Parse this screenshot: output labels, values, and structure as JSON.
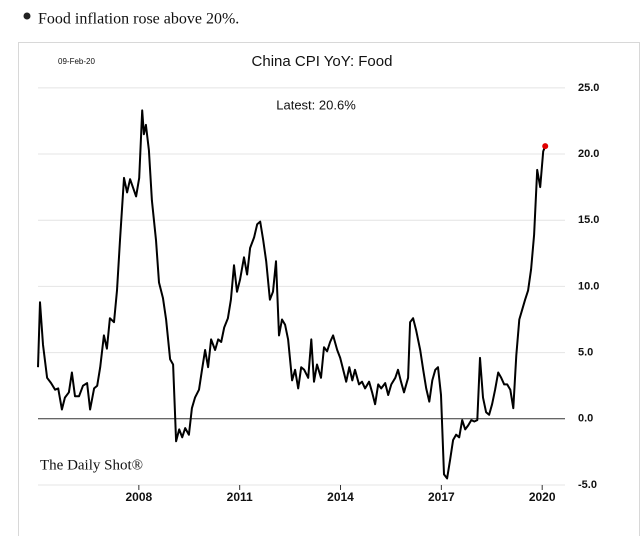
{
  "bullet": {
    "text": "Food inflation rose above 20%."
  },
  "chart_data": {
    "type": "line",
    "title": "China CPI YoY: Food",
    "date": "09-Feb-20",
    "annotation": "Latest:  20.6%",
    "source": "The Daily Shot®",
    "color": "#000000",
    "latest_color": "#e00000",
    "grid": true,
    "xlim": [
      2005,
      2020.5
    ],
    "xticks": [
      2008,
      2011,
      2014,
      2017,
      2020
    ],
    "ylim": [
      -5,
      26.5
    ],
    "yticks": [
      {
        "value": -5,
        "label": "-5.0"
      },
      {
        "value": 0,
        "label": "0.0"
      },
      {
        "value": 5,
        "label": "5.0"
      },
      {
        "value": 10,
        "label": "10.0"
      },
      {
        "value": 15,
        "label": "15.0"
      },
      {
        "value": 20,
        "label": "20.0"
      },
      {
        "value": 25,
        "label": "25.0"
      }
    ],
    "x": [
      2005.0,
      2005.06,
      2005.15,
      2005.27,
      2005.39,
      2005.51,
      2005.6,
      2005.71,
      2005.8,
      2005.92,
      2006.01,
      2006.1,
      2006.22,
      2006.34,
      2006.46,
      2006.55,
      2006.67,
      2006.76,
      2006.85,
      2006.96,
      2007.05,
      2007.14,
      2007.26,
      2007.35,
      2007.44,
      2007.56,
      2007.65,
      2007.74,
      2007.92,
      2008.01,
      2008.1,
      2008.15,
      2008.21,
      2008.3,
      2008.39,
      2008.51,
      2008.6,
      2008.72,
      2008.81,
      2008.93,
      2009.02,
      2009.11,
      2009.2,
      2009.29,
      2009.38,
      2009.49,
      2009.58,
      2009.67,
      2009.79,
      2009.88,
      2009.97,
      2010.06,
      2010.15,
      2010.27,
      2010.36,
      2010.45,
      2010.54,
      2010.65,
      2010.74,
      2010.83,
      2010.92,
      2011.01,
      2011.13,
      2011.22,
      2011.31,
      2011.43,
      2011.52,
      2011.61,
      2011.7,
      2011.79,
      2011.9,
      2011.99,
      2012.08,
      2012.17,
      2012.26,
      2012.35,
      2012.44,
      2012.56,
      2012.65,
      2012.74,
      2012.83,
      2012.92,
      2013.04,
      2013.13,
      2013.21,
      2013.3,
      2013.42,
      2013.51,
      2013.6,
      2013.69,
      2013.78,
      2013.9,
      2013.99,
      2014.08,
      2014.17,
      2014.26,
      2014.35,
      2014.43,
      2014.55,
      2014.64,
      2014.73,
      2014.85,
      2014.94,
      2015.03,
      2015.12,
      2015.21,
      2015.33,
      2015.42,
      2015.51,
      2015.63,
      2015.71,
      2015.8,
      2015.89,
      2016.01,
      2016.07,
      2016.16,
      2016.25,
      2016.37,
      2016.46,
      2016.55,
      2016.64,
      2016.73,
      2016.82,
      2016.9,
      2016.99,
      2017.08,
      2017.17,
      2017.26,
      2017.35,
      2017.44,
      2017.53,
      2017.62,
      2017.71,
      2017.8,
      2017.89,
      2017.98,
      2018.07,
      2018.15,
      2018.24,
      2018.33,
      2018.42,
      2018.51,
      2018.6,
      2018.69,
      2018.78,
      2018.87,
      2018.96,
      2019.05,
      2019.14,
      2019.23,
      2019.32,
      2019.4,
      2019.49,
      2019.58,
      2019.67,
      2019.76,
      2019.85,
      2019.94,
      2020.03,
      2020.09
    ],
    "values": [
      3.9,
      8.8,
      5.6,
      3.1,
      2.7,
      2.2,
      2.3,
      0.7,
      1.6,
      2.0,
      3.5,
      1.7,
      1.7,
      2.5,
      2.7,
      0.7,
      2.3,
      2.5,
      3.9,
      6.3,
      5.3,
      7.6,
      7.3,
      9.7,
      13.5,
      18.2,
      17.1,
      18.1,
      16.8,
      18.2,
      23.3,
      21.5,
      22.2,
      20.3,
      16.5,
      13.5,
      10.3,
      9.1,
      7.5,
      4.5,
      4.1,
      -1.7,
      -0.8,
      -1.4,
      -0.7,
      -1.2,
      0.8,
      1.6,
      2.2,
      3.7,
      5.2,
      3.9,
      6.0,
      5.2,
      6.0,
      5.8,
      6.9,
      7.6,
      9.0,
      11.6,
      9.6,
      10.5,
      12.2,
      10.9,
      12.9,
      13.7,
      14.7,
      14.9,
      13.5,
      11.9,
      9.0,
      9.6,
      11.9,
      6.3,
      7.5,
      7.1,
      6.0,
      2.9,
      3.7,
      2.3,
      3.9,
      3.7,
      3.1,
      6.0,
      2.8,
      4.1,
      3.1,
      5.4,
      5.1,
      5.8,
      6.3,
      5.2,
      4.6,
      3.7,
      2.8,
      3.9,
      2.9,
      3.7,
      2.6,
      2.8,
      2.3,
      2.8,
      2.0,
      1.1,
      2.6,
      2.3,
      2.7,
      1.8,
      2.6,
      3.1,
      3.7,
      2.8,
      2.0,
      3.1,
      7.3,
      7.6,
      6.7,
      5.2,
      3.7,
      2.3,
      1.3,
      2.9,
      3.7,
      3.9,
      1.8,
      -4.2,
      -4.5,
      -3.1,
      -1.6,
      -1.2,
      -1.4,
      -0.1,
      -0.8,
      -0.5,
      -0.1,
      -0.2,
      -0.1,
      4.6,
      1.6,
      0.5,
      0.3,
      1.1,
      2.2,
      3.5,
      3.1,
      2.6,
      2.6,
      2.2,
      0.8,
      4.8,
      7.5,
      8.2,
      9.0,
      9.7,
      11.3,
      13.9,
      18.8,
      17.5,
      20.2,
      20.6
    ]
  }
}
